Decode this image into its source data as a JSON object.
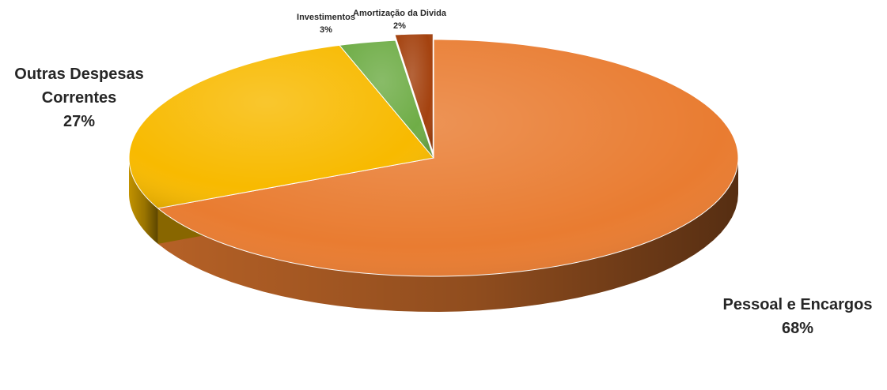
{
  "chart_data": {
    "type": "pie",
    "categories": [
      "Pessoal e Encargos",
      "Outras Despesas Correntes",
      "Investimentos",
      "Amortização da Divida"
    ],
    "values": [
      68,
      27,
      3,
      2
    ],
    "percent_labels": [
      "68%",
      "27%",
      "3%",
      "2%"
    ],
    "label_lines": [
      [
        "Pessoal e Encargos"
      ],
      [
        "Outras Despesas",
        "Correntes"
      ],
      [
        "Investimentos"
      ],
      [
        "Amortização da Divida"
      ]
    ],
    "colors": [
      "#E97C31",
      "#F8BA00",
      "#6FAD47",
      "#A4420F"
    ],
    "exploded": "Amortização da Divida",
    "style": "3d",
    "legend": "none"
  }
}
